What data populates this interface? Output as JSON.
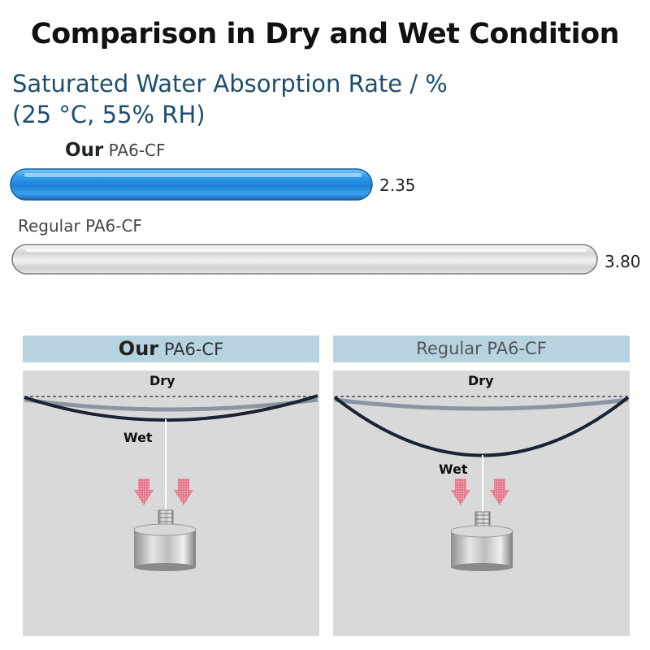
{
  "title": "Comparison in Dry and Wet Condition",
  "subtitle_line1": "Saturated Water Absorption Rate / %",
  "subtitle_line2": "(25 °C,   55% RH)",
  "chart_data": {
    "type": "bar",
    "orientation": "horizontal",
    "title": "Saturated Water Absorption Rate / %",
    "categories": [
      "Our PA6-CF",
      "Regular PA6-CF"
    ],
    "values": [
      2.35,
      3.8
    ],
    "value_labels": [
      "2.35",
      "3.80"
    ],
    "xlim": [
      0,
      3.8
    ],
    "grid": false,
    "colors": [
      "#2f8fe0",
      "#d8d8d8"
    ],
    "category_parts": [
      {
        "prefix": "Our",
        "name": "PA6-CF"
      },
      {
        "prefix": "",
        "name": "Regular PA6-CF"
      }
    ]
  },
  "panels": {
    "ours": {
      "prefix": "Our",
      "name": "PA6-CF",
      "dry": "Dry",
      "wet": "Wet"
    },
    "regular": {
      "name": "Regular PA6-CF",
      "dry": "Dry",
      "wet": "Wet"
    }
  },
  "colors": {
    "header": "#b7d3df",
    "stage": "#d9d9d9",
    "wet_line": "#1a2333",
    "dry_line": "#8a95a1",
    "arrow": "#e57a8e"
  }
}
